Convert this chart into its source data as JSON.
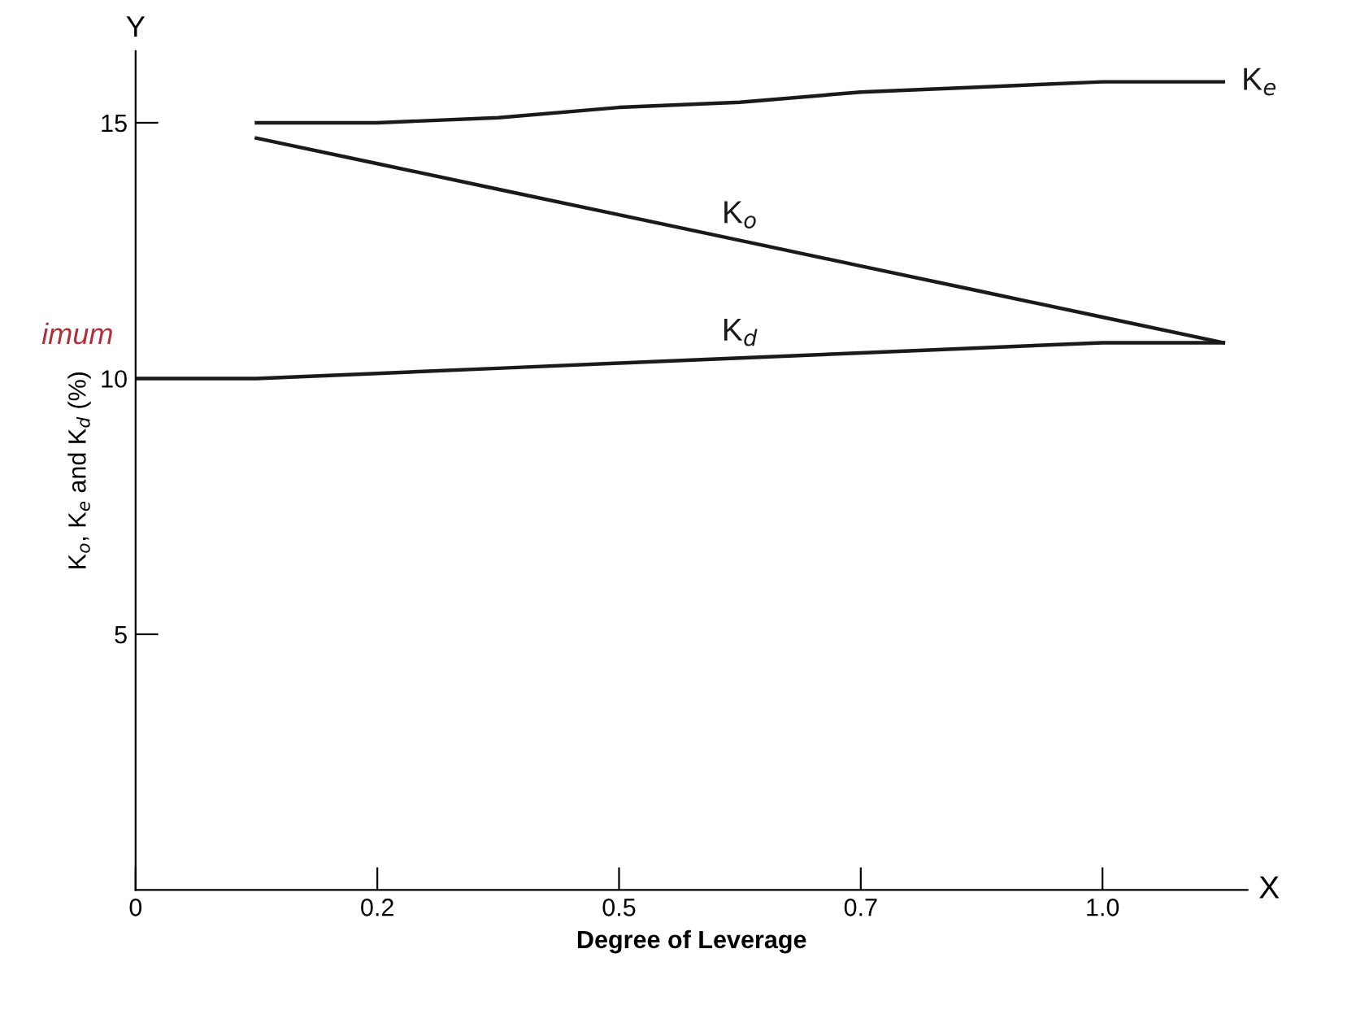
{
  "chart_data": {
    "type": "line",
    "xlabel": "Degree of Leverage",
    "ylabel": "K$_{o}$, K$_{e}$ and K$_{d}$ (%)",
    "annotations": [
      "Y",
      "X",
      "imum"
    ],
    "categories": [
      "0",
      null,
      "0.2",
      null,
      "0.5",
      null,
      "0.7",
      null,
      "1.0",
      null
    ],
    "series": [
      {
        "name": "K$_{e}$",
        "color": "#1a1a1a",
        "values": [
          null,
          15.0,
          15.0,
          15.1,
          15.3,
          15.4,
          15.6,
          15.7,
          15.8,
          15.8
        ]
      },
      {
        "name": "K$_{o}$",
        "color": "#1a1a1a",
        "values": [
          null,
          14.7,
          14.2,
          13.7,
          13.2,
          12.7,
          12.2,
          11.7,
          11.2,
          10.7
        ]
      },
      {
        "name": "K$_{d}$",
        "color": "#1a1a1a",
        "values": [
          10.0,
          10.0,
          10.1,
          10.2,
          10.3,
          10.4,
          10.5,
          10.6,
          10.7,
          10.7
        ]
      }
    ],
    "ylim": [
      0,
      16.4
    ],
    "yticks": [
      5,
      10,
      15
    ],
    "grid": false,
    "legend": false,
    "marker": "none",
    "line_style": "solid"
  }
}
